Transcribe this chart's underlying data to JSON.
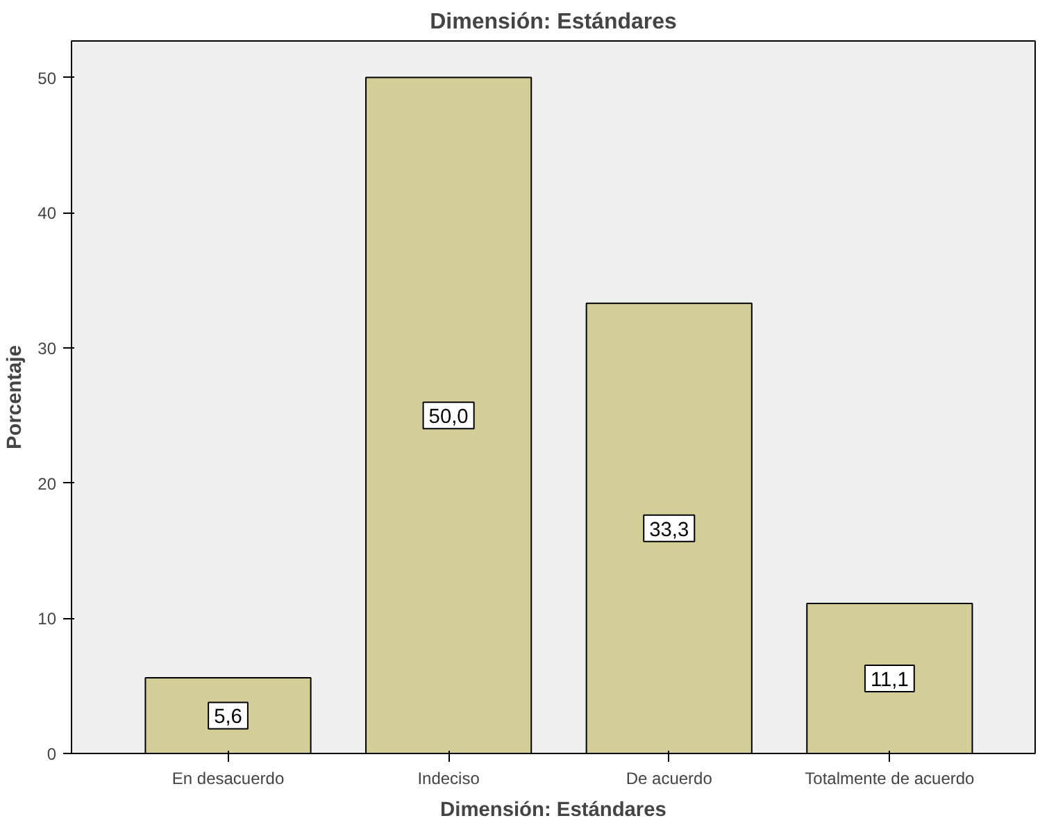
{
  "chart_data": {
    "type": "bar",
    "title": "Dimensión: Estándares",
    "xlabel": "Dimensión: Estándares",
    "ylabel": "Porcentaje",
    "categories": [
      "En desacuerdo",
      "Indeciso",
      "De acuerdo",
      "Totalmente de acuerdo"
    ],
    "values": [
      5.6,
      50.0,
      33.3,
      11.1
    ],
    "value_labels": [
      "5,6",
      "50,0",
      "33,3",
      "11,1"
    ],
    "color": "#d3ce97",
    "ylim": [
      0,
      52.7
    ],
    "yticks": [
      0,
      10,
      20,
      30,
      40,
      50
    ],
    "grid": false
  }
}
